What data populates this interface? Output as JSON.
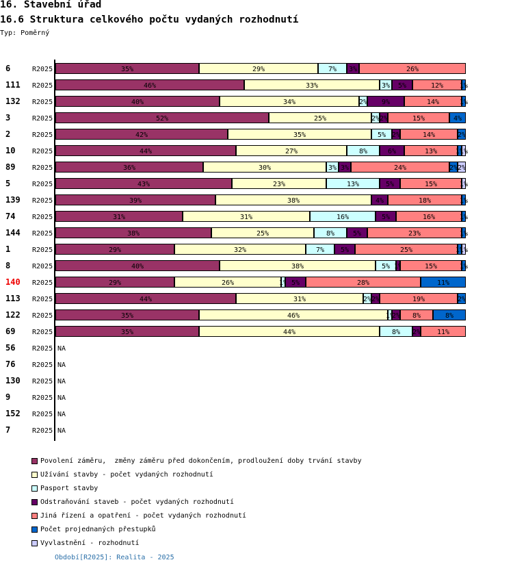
{
  "header": {
    "section_title": "16. Stavební úřad",
    "chart_title": "16.6 Struktura celkového počtu vydaných rozhodnutí",
    "type_label": "Typ: Poměrný"
  },
  "chart_data": {
    "type": "bar",
    "orientation": "horizontal",
    "stacked": true,
    "normalized_percent": true,
    "title": "16.6 Struktura celkového počtu vydaných rozhodnutí",
    "xlabel": "",
    "ylabel": "",
    "xlim": [
      0,
      100
    ],
    "grid": false,
    "legend_position": "bottom",
    "label_suffix": "%",
    "na_label": "NA",
    "highlight_color": "#ee0000",
    "series": [
      {
        "key": "povoleni",
        "name": "Povolení záměru,  změny záměru před dokončením, prodloužení doby trvání stavby",
        "color": "#993366"
      },
      {
        "key": "uzivani",
        "name": "Užívání stavby - počet vydaných rozhodnutí",
        "color": "#ffffcc"
      },
      {
        "key": "pasport",
        "name": "Pasport stavby",
        "color": "#ccffff"
      },
      {
        "key": "odstranovani",
        "name": "Odstraňování staveb - počet vydaných rozhodnutí",
        "color": "#660066"
      },
      {
        "key": "jina-rizeni",
        "name": "Jiná řízení a opatření - počet vydaných rozhodnutí",
        "color": "#ff8080"
      },
      {
        "key": "prestupky",
        "name": "Počet projednaných přestupků",
        "color": "#0066cc"
      },
      {
        "key": "vyvlastneni",
        "name": "Vyvlastnění - rozhodnutí",
        "color": "#ccccff"
      }
    ],
    "rows": [
      {
        "id": "6",
        "period": "R2025",
        "highlighted": false,
        "values": [
          35,
          29,
          7,
          3,
          26,
          0,
          0
        ]
      },
      {
        "id": "111",
        "period": "R2025",
        "highlighted": false,
        "values": [
          46,
          33,
          3,
          5,
          12,
          1,
          0
        ]
      },
      {
        "id": "132",
        "period": "R2025",
        "highlighted": false,
        "values": [
          40,
          34,
          2,
          9,
          14,
          1,
          0
        ]
      },
      {
        "id": "3",
        "period": "R2025",
        "highlighted": false,
        "values": [
          52,
          25,
          2,
          2,
          15,
          4,
          0
        ]
      },
      {
        "id": "2",
        "period": "R2025",
        "highlighted": false,
        "values": [
          42,
          35,
          5,
          2,
          14,
          2,
          0
        ]
      },
      {
        "id": "10",
        "period": "R2025",
        "highlighted": false,
        "values": [
          44,
          27,
          8,
          6,
          13,
          1,
          1
        ]
      },
      {
        "id": "89",
        "period": "R2025",
        "highlighted": false,
        "values": [
          36,
          30,
          3,
          3,
          24,
          2,
          2
        ]
      },
      {
        "id": "5",
        "period": "R2025",
        "highlighted": false,
        "values": [
          43,
          23,
          13,
          5,
          15,
          0,
          1
        ]
      },
      {
        "id": "139",
        "period": "R2025",
        "highlighted": false,
        "values": [
          39,
          38,
          0,
          4,
          18,
          1,
          0
        ]
      },
      {
        "id": "74",
        "period": "R2025",
        "highlighted": false,
        "values": [
          31,
          31,
          16,
          5,
          16,
          1,
          0
        ]
      },
      {
        "id": "144",
        "period": "R2025",
        "highlighted": false,
        "values": [
          38,
          25,
          8,
          5,
          23,
          1,
          0
        ]
      },
      {
        "id": "1",
        "period": "R2025",
        "highlighted": false,
        "values": [
          29,
          32,
          7,
          5,
          25,
          1,
          1
        ]
      },
      {
        "id": "8",
        "period": "R2025",
        "highlighted": false,
        "values": [
          40,
          38,
          5,
          1,
          15,
          1,
          0
        ]
      },
      {
        "id": "140",
        "period": "R2025",
        "highlighted": true,
        "values": [
          29,
          26,
          1,
          5,
          28,
          11,
          0
        ]
      },
      {
        "id": "113",
        "period": "R2025",
        "highlighted": false,
        "values": [
          44,
          31,
          2,
          2,
          19,
          2,
          0
        ]
      },
      {
        "id": "122",
        "period": "R2025",
        "highlighted": false,
        "values": [
          35,
          46,
          1,
          2,
          8,
          8,
          0
        ]
      },
      {
        "id": "69",
        "period": "R2025",
        "highlighted": false,
        "values": [
          35,
          44,
          8,
          2,
          11,
          0,
          0
        ]
      },
      {
        "id": "56",
        "period": "R2025",
        "highlighted": false,
        "values": null
      },
      {
        "id": "76",
        "period": "R2025",
        "highlighted": false,
        "values": null
      },
      {
        "id": "130",
        "period": "R2025",
        "highlighted": false,
        "values": null
      },
      {
        "id": "9",
        "period": "R2025",
        "highlighted": false,
        "values": null
      },
      {
        "id": "152",
        "period": "R2025",
        "highlighted": false,
        "values": null
      },
      {
        "id": "7",
        "period": "R2025",
        "highlighted": false,
        "values": null
      }
    ]
  },
  "footer": {
    "period_note": "Období[R2025]: Realita - 2025"
  }
}
